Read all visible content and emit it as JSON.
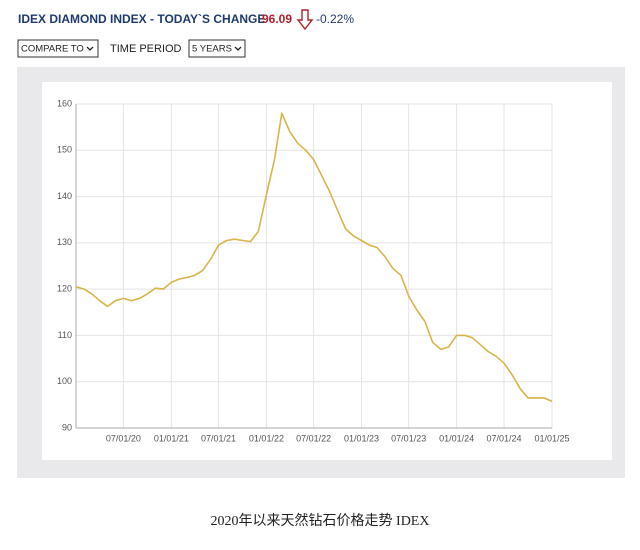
{
  "header": {
    "title": "IDEX DIAMOND INDEX - TODAY`S CHANGE",
    "value": "96.09",
    "change": "-0.22%"
  },
  "controls": {
    "compare": "COMPARE TO",
    "period_label": "TIME PERIOD",
    "period": "5 YEARS"
  },
  "chart_data": {
    "type": "line",
    "x": [
      "2020-01-01",
      "2020-02-01",
      "2020-03-01",
      "2020-04-01",
      "2020-05-01",
      "2020-06-01",
      "2020-07-01",
      "2020-08-01",
      "2020-09-01",
      "2020-10-01",
      "2020-11-01",
      "2020-12-01",
      "2021-01-01",
      "2021-02-01",
      "2021-03-01",
      "2021-04-01",
      "2021-05-01",
      "2021-06-01",
      "2021-07-01",
      "2021-08-01",
      "2021-09-01",
      "2021-10-01",
      "2021-11-01",
      "2021-12-01",
      "2022-01-01",
      "2022-02-01",
      "2022-03-01",
      "2022-04-01",
      "2022-05-01",
      "2022-06-01",
      "2022-07-01",
      "2022-08-01",
      "2022-09-01",
      "2022-10-01",
      "2022-11-01",
      "2022-12-01",
      "2023-01-01",
      "2023-02-01",
      "2023-03-01",
      "2023-04-01",
      "2023-05-01",
      "2023-06-01",
      "2023-07-01",
      "2023-08-01",
      "2023-09-01",
      "2023-10-01",
      "2023-11-01",
      "2023-12-01",
      "2024-01-01",
      "2024-02-01",
      "2024-03-01",
      "2024-04-01",
      "2024-05-01",
      "2024-06-01",
      "2024-07-01",
      "2024-08-01",
      "2024-09-01",
      "2024-10-01",
      "2024-11-01",
      "2024-12-01",
      "2025-01-01"
    ],
    "series": [
      {
        "color": "#d9b44a",
        "values": [
          120.5,
          120,
          119,
          117.5,
          116.3,
          117.5,
          118,
          117.5,
          118,
          119,
          120.2,
          120,
          121.5,
          122.2,
          122.5,
          123,
          124,
          126.5,
          129.5,
          130.5,
          130.8,
          130.5,
          130.3,
          132.5,
          140.5,
          148,
          158,
          154,
          151.5,
          150,
          148,
          144.5,
          141,
          137,
          133,
          131.5,
          130.5,
          129.5,
          129,
          127,
          124.5,
          123,
          118.5,
          115.5,
          113,
          108.5,
          107,
          107.5,
          110,
          110,
          109.5,
          108,
          106.5,
          105.5,
          104,
          101.5,
          98.5,
          96.5,
          96.5,
          96.5,
          95.8
        ]
      }
    ],
    "xlim": [
      "2020-01-01",
      "2025-01-01"
    ],
    "xticks": [
      {
        "value": "2020-07-01",
        "label": "07/01/20"
      },
      {
        "value": "2021-01-01",
        "label": "01/01/21"
      },
      {
        "value": "2021-07-01",
        "label": "07/01/21"
      },
      {
        "value": "2022-01-01",
        "label": "01/01/22"
      },
      {
        "value": "2022-07-01",
        "label": "07/01/22"
      },
      {
        "value": "2023-01-01",
        "label": "01/01/23"
      },
      {
        "value": "2023-07-01",
        "label": "07/01/23"
      },
      {
        "value": "2024-01-01",
        "label": "01/01/24"
      },
      {
        "value": "2024-07-01",
        "label": "07/01/24"
      },
      {
        "value": "2025-01-01",
        "label": "01/01/25"
      }
    ],
    "ylim": [
      90,
      160
    ],
    "yticks": [
      90,
      100,
      110,
      120,
      130,
      140,
      150,
      160
    ],
    "grid": true
  },
  "caption": "2020年以来天然钻石价格走势  IDEX"
}
